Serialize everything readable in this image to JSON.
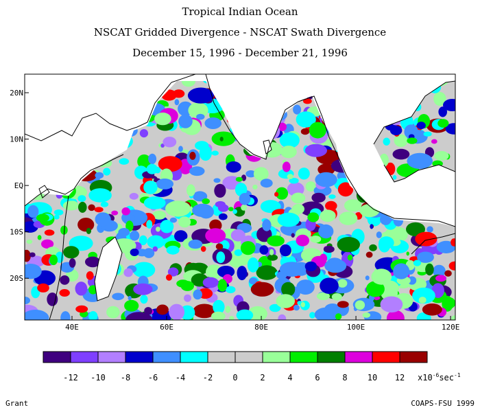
{
  "titles": {
    "line1": "Tropical Indian Ocean",
    "line2": "NSCAT Gridded Divergence - NSCAT Swath Divergence",
    "line3": "December 15, 1996 - December 21, 1996"
  },
  "map": {
    "lat_labels": [
      "20N",
      "10N",
      "EQ",
      "10S",
      "20S"
    ],
    "lon_labels": [
      "40E",
      "60E",
      "80E",
      "100E",
      "120E"
    ],
    "lon_range": [
      30,
      121
    ],
    "lat_range": [
      -29,
      24
    ]
  },
  "colorbar": {
    "colors": [
      "#3f007f",
      "#7f3fff",
      "#b27fff",
      "#0000cc",
      "#3f8fff",
      "#00ffff",
      "#cccccc",
      "#cccccc",
      "#99ff99",
      "#00ee00",
      "#007f00",
      "#dd00dd",
      "#ff0000",
      "#990000"
    ],
    "labels": [
      "-12",
      "-10",
      "-8",
      "-6",
      "-4",
      "-2",
      "0",
      "2",
      "4",
      "6",
      "8",
      "10",
      "12"
    ],
    "unit_prefix": "x10",
    "unit_exp": "-6",
    "unit_suffix": "sec",
    "unit_suffix_exp": "-1"
  },
  "footer": {
    "left": "Grant",
    "right": "COAPS-FSU 1999"
  }
}
